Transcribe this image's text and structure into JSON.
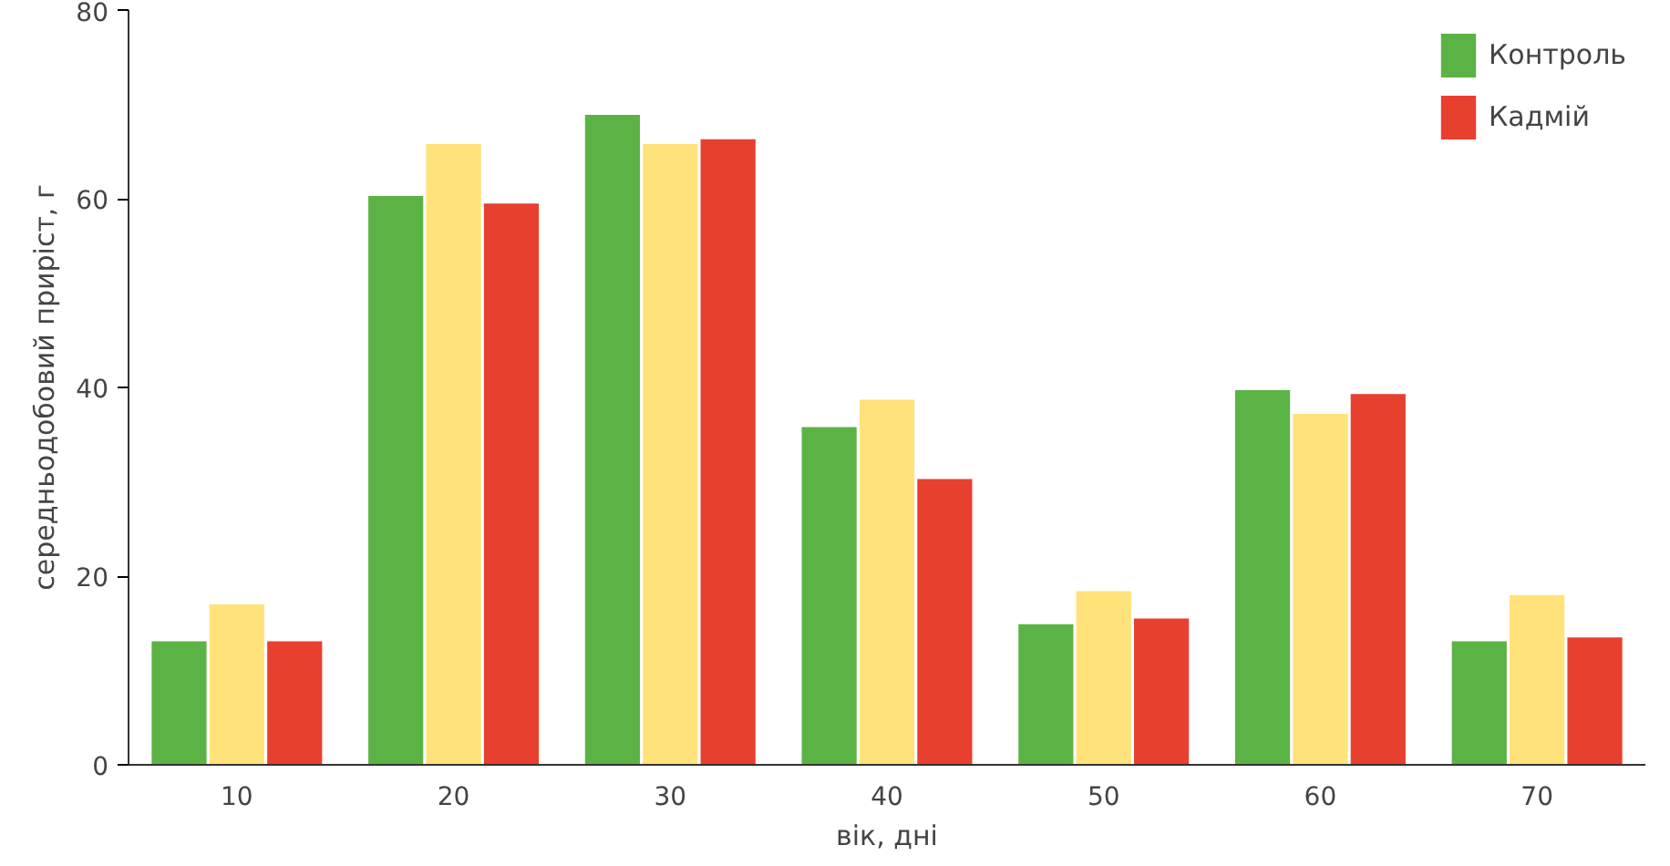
{
  "chart_data": {
    "type": "bar",
    "xlabel": "вік, дні",
    "ylabel": "середньодобовий приріст, г",
    "categories": [
      "10",
      "20",
      "30",
      "40",
      "50",
      "60",
      "70"
    ],
    "series": [
      {
        "name": "Контроль",
        "color": "#5cb345",
        "values": [
          13.1,
          60.3,
          68.9,
          35.8,
          14.9,
          39.7,
          13.1
        ]
      },
      {
        "color": "#ffe27a",
        "values": [
          17.0,
          65.8,
          65.8,
          38.7,
          18.4,
          37.2,
          18.0
        ]
      },
      {
        "name": "Кадмій",
        "color": "#e8402e",
        "values": [
          13.1,
          59.5,
          66.3,
          30.3,
          15.5,
          39.3,
          13.5
        ]
      }
    ],
    "ylim": [
      0,
      80
    ],
    "yticks": [
      0,
      20,
      40,
      60,
      80
    ],
    "grid": false,
    "legend": "top right"
  }
}
